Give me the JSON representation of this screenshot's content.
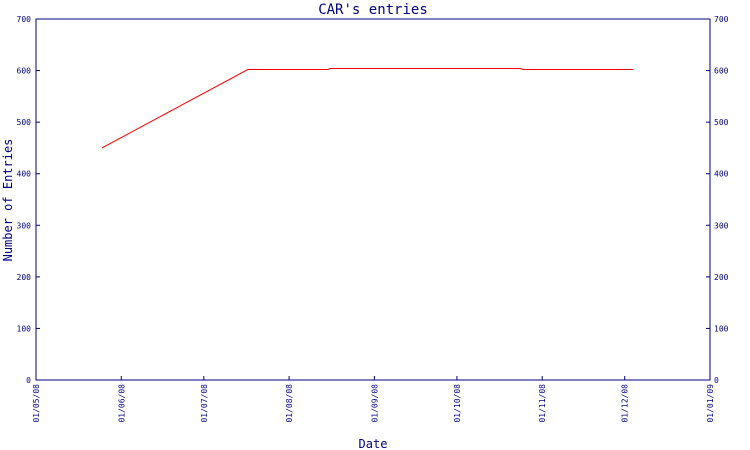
{
  "chart_data": {
    "type": "line",
    "title": "CAR's entries",
    "xlabel": "Date",
    "ylabel": "Number of Entries",
    "ylim": [
      0,
      700
    ],
    "y_ticks": [
      0,
      100,
      200,
      300,
      400,
      500,
      600,
      700
    ],
    "x_ticks": [
      "01/05/08",
      "01/06/08",
      "01/07/08",
      "01/08/08",
      "01/09/08",
      "01/10/08",
      "01/11/08",
      "01/12/08",
      "01/01/09"
    ],
    "xlim": [
      "2008-05-01",
      "2009-01-01"
    ],
    "grid": false,
    "series": [
      {
        "color": "#ff0000",
        "points": [
          {
            "x": "2008-05-25",
            "y": 450
          },
          {
            "x": "2008-07-17",
            "y": 602
          },
          {
            "x": "2008-08-15",
            "y": 602
          },
          {
            "x": "2008-08-16",
            "y": 604
          },
          {
            "x": "2008-10-24",
            "y": 604
          },
          {
            "x": "2008-10-25",
            "y": 602
          },
          {
            "x": "2008-12-04",
            "y": 602
          }
        ]
      }
    ],
    "colors": {
      "axis": "#000080",
      "series": "#ff0000"
    }
  }
}
